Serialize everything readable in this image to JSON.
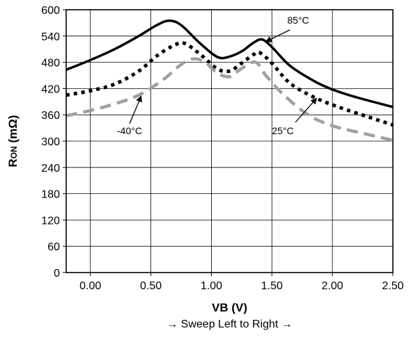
{
  "chart_data": {
    "type": "line",
    "title": "",
    "xlabel": "VB (V)",
    "ylabel_main": "R",
    "ylabel_sub": "ON",
    "ylabel_unit": " (mΩ)",
    "sweep_note": "→ Sweep Left to Right →",
    "xlim": [
      -0.2,
      2.5
    ],
    "ylim": [
      0,
      600
    ],
    "x_ticks": [
      0.0,
      0.5,
      1.0,
      1.5,
      2.0,
      2.5
    ],
    "x_tick_labels": [
      "0.00",
      "0.50",
      "1.00",
      "1.50",
      "2.00",
      "2.50"
    ],
    "y_ticks": [
      0,
      60,
      120,
      180,
      240,
      300,
      360,
      420,
      480,
      540,
      600
    ],
    "y_tick_labels": [
      "0",
      "60",
      "120",
      "180",
      "240",
      "300",
      "360",
      "420",
      "480",
      "540",
      "600"
    ],
    "grid": true,
    "series": [
      {
        "name": "85°C",
        "color": "#000000",
        "style": "solid",
        "x": [
          -0.2,
          0.0,
          0.2,
          0.4,
          0.55,
          0.65,
          0.75,
          0.9,
          1.05,
          1.15,
          1.25,
          1.35,
          1.42,
          1.5,
          1.65,
          1.85,
          2.0,
          2.2,
          2.5
        ],
        "y": [
          463,
          485,
          510,
          540,
          565,
          575,
          565,
          525,
          492,
          493,
          505,
          525,
          532,
          515,
          472,
          437,
          418,
          400,
          378
        ]
      },
      {
        "name": "25°C",
        "color": "#000000",
        "style": "dotted",
        "x": [
          -0.2,
          0.0,
          0.2,
          0.4,
          0.55,
          0.7,
          0.78,
          0.9,
          1.05,
          1.15,
          1.25,
          1.35,
          1.4,
          1.5,
          1.65,
          1.85,
          2.05,
          2.3,
          2.5
        ],
        "y": [
          405,
          415,
          430,
          460,
          495,
          520,
          523,
          500,
          465,
          460,
          478,
          498,
          502,
          478,
          432,
          400,
          378,
          355,
          337
        ]
      },
      {
        "name": "-40°C",
        "color": "#a0a0a0",
        "style": "dashed",
        "x": [
          -0.2,
          0.0,
          0.2,
          0.4,
          0.6,
          0.75,
          0.85,
          0.95,
          1.05,
          1.15,
          1.22,
          1.32,
          1.38,
          1.45,
          1.6,
          1.8,
          2.0,
          2.25,
          2.5
        ],
        "y": [
          358,
          370,
          385,
          405,
          440,
          475,
          488,
          480,
          455,
          447,
          460,
          478,
          478,
          450,
          405,
          360,
          335,
          318,
          302
        ]
      }
    ],
    "annotations": [
      {
        "series": "85°C",
        "label": "85°C",
        "arrow_to": [
          1.45,
          527
        ]
      },
      {
        "series": "25°C",
        "label": "25°C",
        "arrow_to": [
          1.87,
          398
        ]
      },
      {
        "series": "-40°C",
        "label": "-40°C",
        "arrow_to": [
          0.42,
          403
        ]
      }
    ]
  }
}
